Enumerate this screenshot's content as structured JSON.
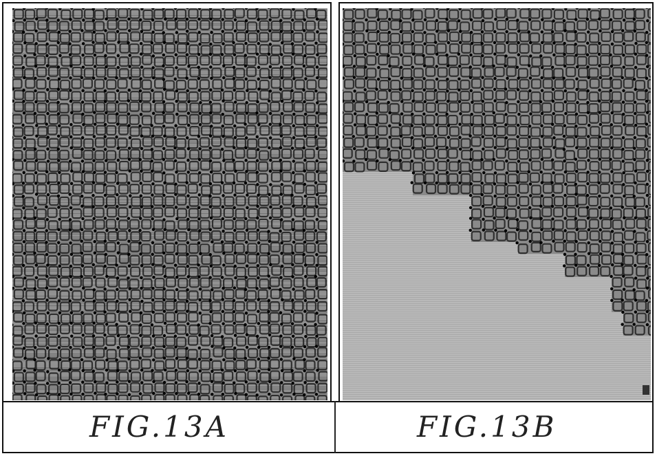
{
  "figures": [
    {
      "caption": "FIG.13A",
      "content": "full-texture"
    },
    {
      "caption": "FIG.13B",
      "content": "partial-texture"
    }
  ],
  "colors": {
    "line": "#111111",
    "texture_dark": "#1f1f1f",
    "texture_mid": "#8a8a8a",
    "fill_light": "#b9b9b9",
    "background": "#ffffff"
  }
}
